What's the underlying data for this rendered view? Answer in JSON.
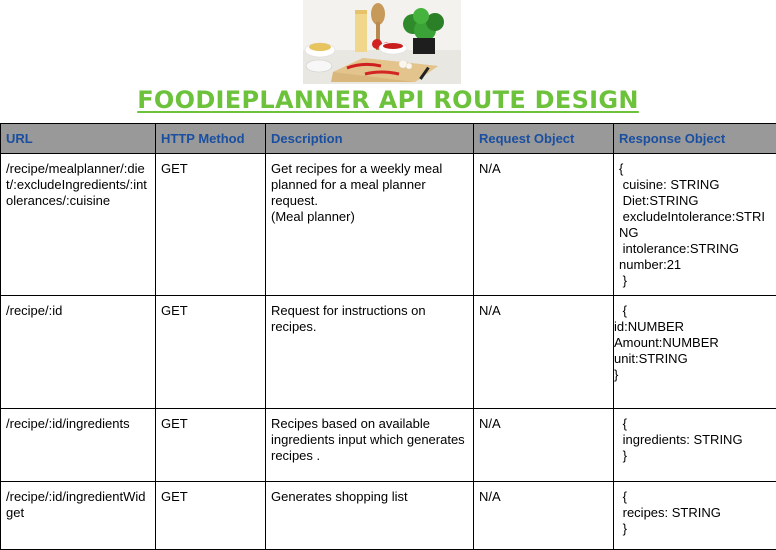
{
  "page": {
    "title": "FOODIEPLANNER API ROUTE DESIGN"
  },
  "colors": {
    "title_green": "#6cc23a",
    "header_bg": "#999999",
    "header_text": "#1a4fa0"
  },
  "hero_image": {
    "icon": "kitchen-ingredients-photo"
  },
  "table": {
    "headers": [
      "URL",
      "HTTP Method",
      "Description",
      "Request Object",
      "Response Object"
    ],
    "rows": [
      {
        "url": "/recipe/mealplanner/:diet/:excludeIngredients/:intolerances/:cuisine",
        "method": "GET",
        "description": "Get recipes for a weekly meal planned for a meal planner request.",
        "description_note": "(Meal planner)",
        "request": "N/A",
        "response": [
          "{",
          " cuisine: STRING",
          " Diet:STRING",
          " excludeIntolerance:STRING",
          " intolerance:STRING",
          "number:21",
          " }"
        ]
      },
      {
        "url": "/recipe/:id",
        "method": "GET",
        "description": "Request for instructions on recipes.",
        "description_note": "",
        "request": "N/A",
        "response": [
          " {",
          "id:NUMBER",
          "Amount:NUMBER",
          "unit:STRING",
          "}"
        ]
      },
      {
        "url": "/recipe/:id/ingredients",
        "method": "GET",
        "description": "Recipes based on available ingredients input which generates recipes .",
        "description_note": "",
        "request": "N/A",
        "response": [
          " {",
          " ingredients: STRING",
          " }"
        ]
      },
      {
        "url": "/recipe/:id/ingredientWidget",
        "method": "GET",
        "description": "Generates shopping list",
        "description_note": "",
        "request": "N/A",
        "response": [
          " {",
          " recipes: STRING",
          " }"
        ]
      }
    ]
  }
}
